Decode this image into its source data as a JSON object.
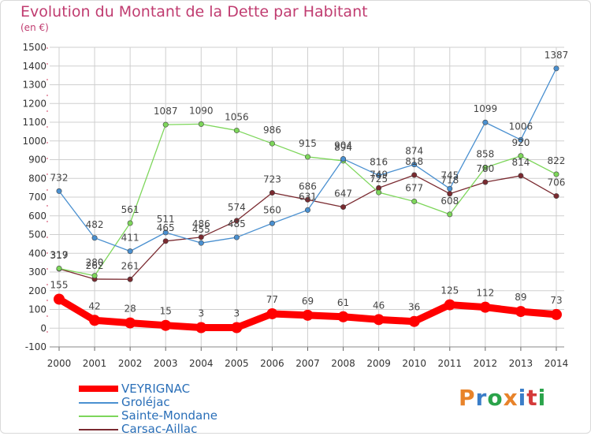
{
  "header": {
    "title": "Evolution du Montant de la Dette par Habitant",
    "subtitle": "(en €)"
  },
  "logo": {
    "text": "Proxiti",
    "colors": [
      "#e8832a",
      "#3a7dc8",
      "#2aa34a",
      "#e8832a",
      "#3a7dc8",
      "#d43a3a",
      "#2aa34a"
    ]
  },
  "chart_data": {
    "type": "line",
    "title": "Evolution du Montant de la Dette par Habitant",
    "subtitle": "(en €)",
    "xlabel": "",
    "ylabel": "",
    "x": [
      "2000",
      "2001",
      "2002",
      "2003",
      "2004",
      "2005",
      "2006",
      "2007",
      "2008",
      "2009",
      "2010",
      "2011",
      "2012",
      "2013",
      "2014"
    ],
    "ylim": [
      -100,
      1500
    ],
    "yticks": [
      "-100",
      "0",
      "100",
      "200",
      "300",
      "400",
      "500",
      "600",
      "700",
      "800",
      "900",
      "1000",
      "1100",
      "1200",
      "1300",
      "1400",
      "1500"
    ],
    "grid": true,
    "legend_position": "bottom-left",
    "series": [
      {
        "name": "VEYRIGNAC",
        "color": "#ff0000",
        "values": [
          155,
          42,
          28,
          15,
          3,
          3,
          77,
          69,
          61,
          46,
          36,
          125,
          112,
          89,
          73
        ]
      },
      {
        "name": "Groléjac",
        "color": "#4a90d0",
        "values": [
          732,
          482,
          411,
          511,
          455,
          485,
          560,
          631,
          904,
          816,
          874,
          745,
          1099,
          1006,
          1387
        ]
      },
      {
        "name": "Sainte-Mondane",
        "color": "#7dd65a",
        "values": [
          319,
          280,
          561,
          1087,
          1090,
          1056,
          986,
          915,
          894,
          725,
          677,
          608,
          858,
          920,
          822
        ]
      },
      {
        "name": "Carsac-Aillac",
        "color": "#7a2a30",
        "values": [
          317,
          262,
          261,
          465,
          486,
          574,
          723,
          686,
          647,
          749,
          818,
          718,
          780,
          814,
          706
        ]
      }
    ]
  }
}
